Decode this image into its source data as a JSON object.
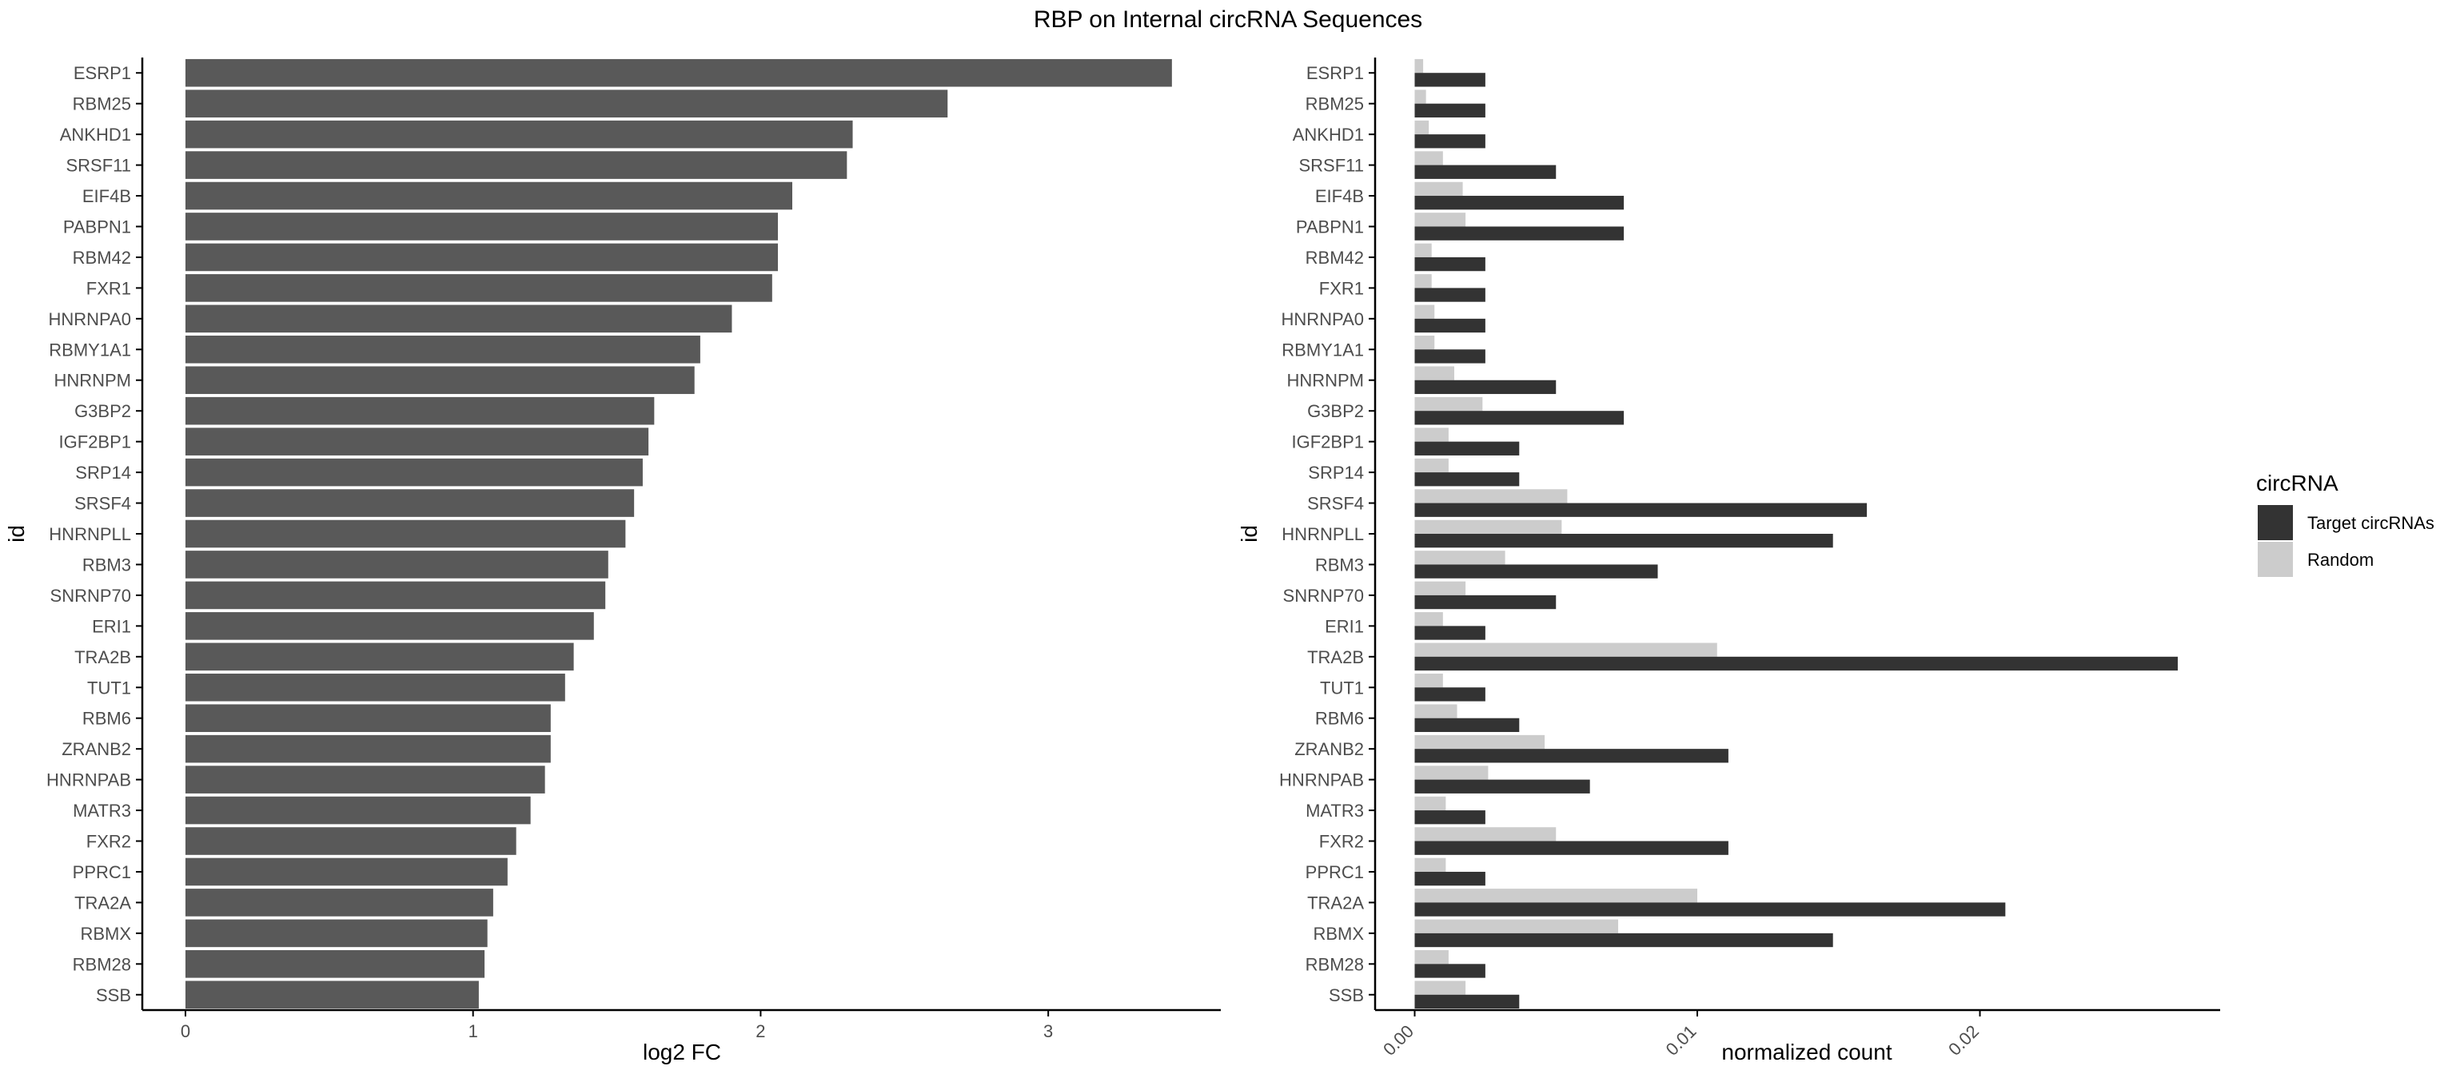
{
  "figure_title": "RBP on Internal circRNA Sequences",
  "colors": {
    "bar_left": "#595959",
    "target": "#333333",
    "random": "#cccccc",
    "axis": "#000000",
    "tick_text": "#4d4d4d"
  },
  "chart_data": [
    {
      "type": "bar",
      "orientation": "horizontal",
      "title": "",
      "xlabel": "log2 FC",
      "ylabel": "id",
      "xlim": [
        -0.15,
        3.6
      ],
      "xticks": [
        "0",
        "1",
        "2",
        "3"
      ],
      "categories": [
        "ESRP1",
        "RBM25",
        "ANKHD1",
        "SRSF11",
        "EIF4B",
        "PABPN1",
        "RBM42",
        "FXR1",
        "HNRNPA0",
        "RBMY1A1",
        "HNRNPM",
        "G3BP2",
        "IGF2BP1",
        "SRP14",
        "SRSF4",
        "HNRNPLL",
        "RBM3",
        "SNRNP70",
        "ERI1",
        "TRA2B",
        "TUT1",
        "RBM6",
        "ZRANB2",
        "HNRNPAB",
        "MATR3",
        "FXR2",
        "PPRC1",
        "TRA2A",
        "RBMX",
        "RBM28",
        "SSB"
      ],
      "values": [
        3.43,
        2.65,
        2.32,
        2.3,
        2.11,
        2.06,
        2.06,
        2.04,
        1.9,
        1.79,
        1.77,
        1.63,
        1.61,
        1.59,
        1.56,
        1.53,
        1.47,
        1.46,
        1.42,
        1.35,
        1.32,
        1.27,
        1.27,
        1.25,
        1.2,
        1.15,
        1.12,
        1.07,
        1.05,
        1.04,
        1.02
      ],
      "grid": false
    },
    {
      "type": "bar",
      "orientation": "horizontal",
      "grouped": true,
      "title": "",
      "xlabel": "normalized count",
      "ylabel": "id",
      "xlim": [
        -0.0014,
        0.0285
      ],
      "xticks": [
        "0.00",
        "0.01",
        "0.02"
      ],
      "categories": [
        "ESRP1",
        "RBM25",
        "ANKHD1",
        "SRSF11",
        "EIF4B",
        "PABPN1",
        "RBM42",
        "FXR1",
        "HNRNPA0",
        "RBMY1A1",
        "HNRNPM",
        "G3BP2",
        "IGF2BP1",
        "SRP14",
        "SRSF4",
        "HNRNPLL",
        "RBM3",
        "SNRNP70",
        "ERI1",
        "TRA2B",
        "TUT1",
        "RBM6",
        "ZRANB2",
        "HNRNPAB",
        "MATR3",
        "FXR2",
        "PPRC1",
        "TRA2A",
        "RBMX",
        "RBM28",
        "SSB"
      ],
      "series": [
        {
          "name": "Target circRNAs",
          "values": [
            0.0025,
            0.0025,
            0.0025,
            0.005,
            0.0074,
            0.0074,
            0.0025,
            0.0025,
            0.0025,
            0.0025,
            0.005,
            0.0074,
            0.0037,
            0.0037,
            0.016,
            0.0148,
            0.0086,
            0.005,
            0.0025,
            0.027,
            0.0025,
            0.0037,
            0.0111,
            0.0062,
            0.0025,
            0.0111,
            0.0025,
            0.0209,
            0.0148,
            0.0025,
            0.0037
          ]
        },
        {
          "name": "Random",
          "values": [
            0.0003,
            0.0004,
            0.0005,
            0.001,
            0.0017,
            0.0018,
            0.0006,
            0.0006,
            0.0007,
            0.0007,
            0.0014,
            0.0024,
            0.0012,
            0.0012,
            0.0054,
            0.0052,
            0.0032,
            0.0018,
            0.001,
            0.0107,
            0.001,
            0.0015,
            0.0046,
            0.0026,
            0.0011,
            0.005,
            0.0011,
            0.01,
            0.0072,
            0.0012,
            0.0018
          ]
        }
      ],
      "legend": {
        "title": "circRNA",
        "position": "right"
      },
      "grid": false
    }
  ]
}
